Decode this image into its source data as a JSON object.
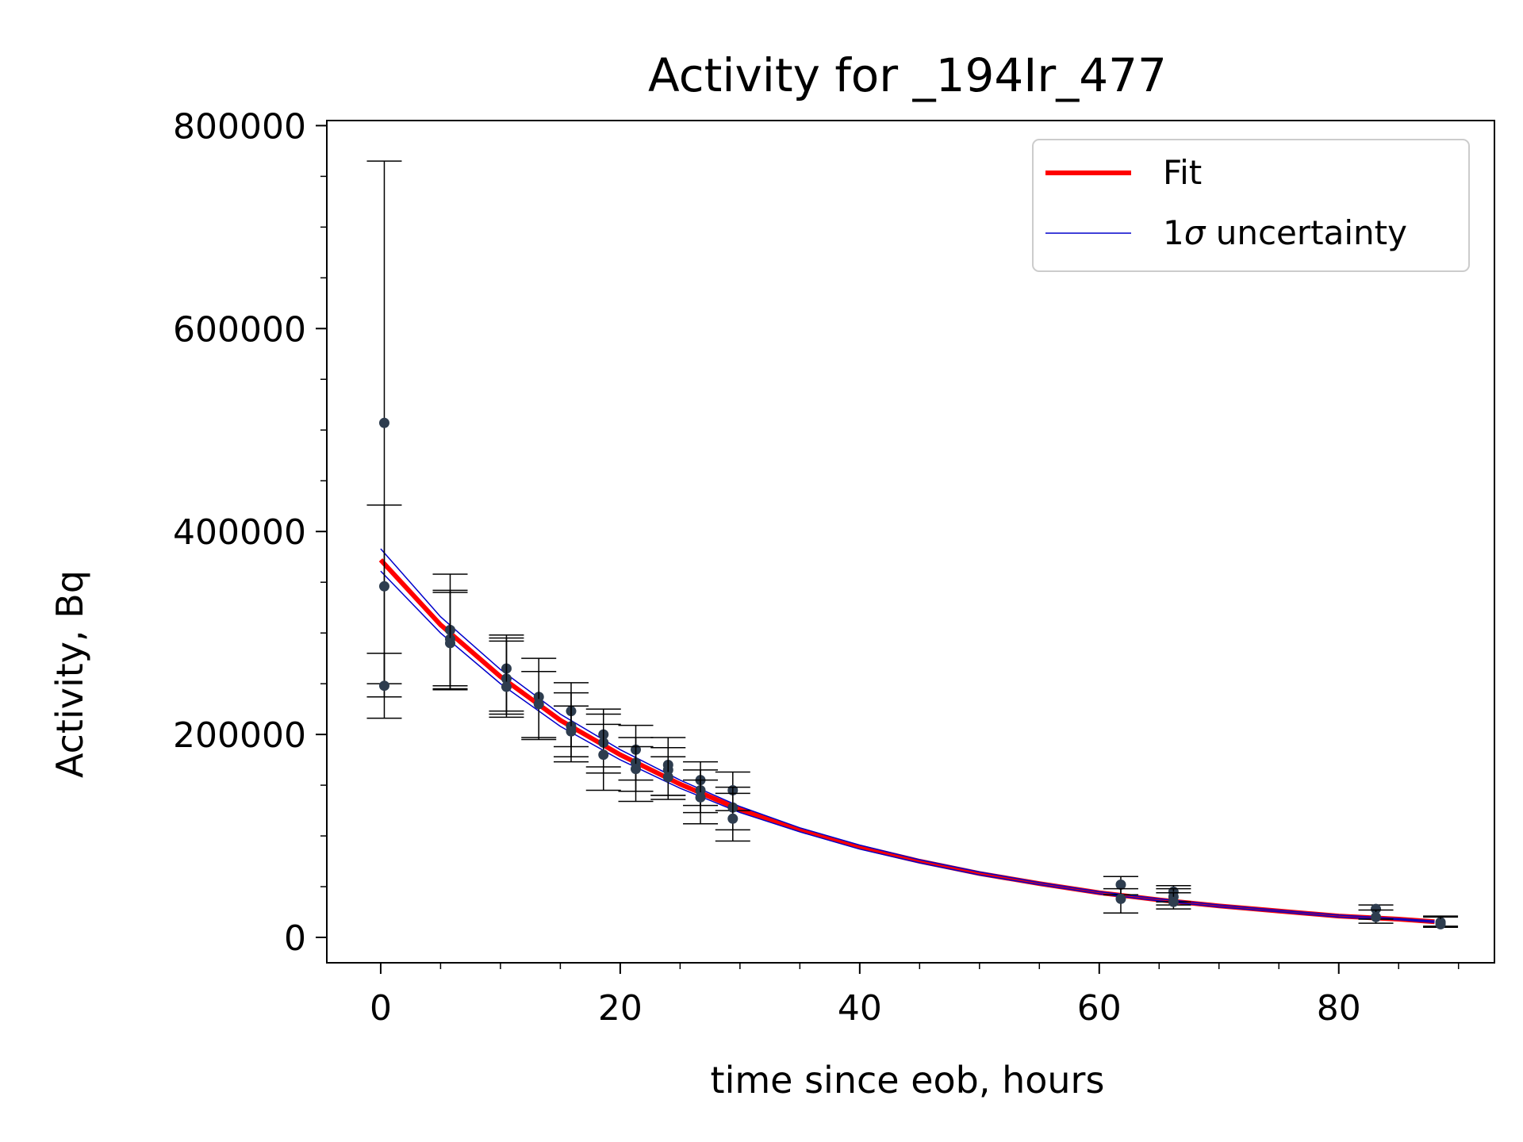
{
  "chart_data": {
    "type": "scatter",
    "title": "Activity for _194Ir_477",
    "xlabel": "time since eob, hours",
    "ylabel": "Activity, Bq",
    "xlim": [
      -4.5,
      93
    ],
    "ylim": [
      -25000,
      805000
    ],
    "x_ticks": [
      0,
      20,
      40,
      60,
      80
    ],
    "y_ticks": [
      0,
      200000,
      400000,
      600000,
      800000
    ],
    "x_minor_step": 5,
    "y_minor_step": 50000,
    "grid": false,
    "legend": {
      "position": "top-right",
      "entries": [
        {
          "label": "Fit",
          "color": "#ff0000"
        },
        {
          "label_prefix": "1",
          "label_symbol": "σ",
          "label_suffix": " uncertainty",
          "color": "#0000cc"
        }
      ]
    },
    "fit": {
      "name": "Fit",
      "color": "#ff0000",
      "x": [
        0,
        5,
        10,
        15,
        20,
        25,
        30,
        35,
        40,
        45,
        50,
        55,
        60,
        65,
        70,
        75,
        80,
        85,
        88
      ],
      "y": [
        372000,
        308000,
        257000,
        214000,
        180000,
        151000,
        126000,
        106000,
        89000,
        75000,
        63000,
        53000,
        44000,
        37000,
        31000,
        26000,
        21000,
        18000,
        15500
      ]
    },
    "uncertainty_upper": {
      "name": "1σ uncertainty",
      "color": "#0000cc",
      "x": [
        0,
        5,
        10,
        15,
        20,
        25,
        30,
        35,
        40,
        45,
        50,
        55,
        60,
        65,
        70,
        75,
        80,
        85,
        88
      ],
      "y": [
        383000,
        316000,
        264000,
        220000,
        185000,
        155000,
        129000,
        108000,
        91000,
        76500,
        64500,
        54000,
        45000,
        38000,
        32000,
        26800,
        22000,
        18600,
        16200
      ]
    },
    "uncertainty_lower": {
      "name": "1σ uncertainty",
      "color": "#0000cc",
      "x": [
        0,
        5,
        10,
        15,
        20,
        25,
        30,
        35,
        40,
        45,
        50,
        55,
        60,
        65,
        70,
        75,
        80,
        85,
        88
      ],
      "y": [
        361000,
        300000,
        250000,
        208000,
        175000,
        147000,
        123000,
        104000,
        87000,
        73500,
        61500,
        52000,
        43000,
        36000,
        30000,
        25200,
        20000,
        17400,
        14800
      ]
    },
    "points": [
      {
        "x": 0.3,
        "y": 507000,
        "err_low": 270000,
        "err_high": 258000
      },
      {
        "x": 0.3,
        "y": 346000,
        "err_low": 96000,
        "err_high": 80000
      },
      {
        "x": 0.3,
        "y": 248000,
        "err_low": 32000,
        "err_high": 32000
      },
      {
        "x": 5.8,
        "y": 303000,
        "err_low": 55000,
        "err_high": 55000
      },
      {
        "x": 5.8,
        "y": 294000,
        "err_low": 50000,
        "err_high": 48000
      },
      {
        "x": 5.8,
        "y": 290000,
        "err_low": 45000,
        "err_high": 50000
      },
      {
        "x": 10.5,
        "y": 265000,
        "err_low": 42000,
        "err_high": 33000
      },
      {
        "x": 10.5,
        "y": 255000,
        "err_low": 35000,
        "err_high": 40000
      },
      {
        "x": 10.5,
        "y": 247000,
        "err_low": 30000,
        "err_high": 45000
      },
      {
        "x": 13.2,
        "y": 237000,
        "err_low": 40000,
        "err_high": 38000
      },
      {
        "x": 13.2,
        "y": 230000,
        "err_low": 35000,
        "err_high": 32000
      },
      {
        "x": 15.9,
        "y": 223000,
        "err_low": 35000,
        "err_high": 28000
      },
      {
        "x": 15.9,
        "y": 208000,
        "err_low": 30000,
        "err_high": 33000
      },
      {
        "x": 15.9,
        "y": 203000,
        "err_low": 30000,
        "err_high": 25000
      },
      {
        "x": 18.6,
        "y": 200000,
        "err_low": 32000,
        "err_high": 25000
      },
      {
        "x": 18.6,
        "y": 192000,
        "err_low": 30000,
        "err_high": 28000
      },
      {
        "x": 18.6,
        "y": 180000,
        "err_low": 35000,
        "err_high": 30000
      },
      {
        "x": 21.3,
        "y": 185000,
        "err_low": 30000,
        "err_high": 24000
      },
      {
        "x": 21.3,
        "y": 172000,
        "err_low": 28000,
        "err_high": 25000
      },
      {
        "x": 21.3,
        "y": 166000,
        "err_low": 32000,
        "err_high": 22000
      },
      {
        "x": 24.0,
        "y": 170000,
        "err_low": 30000,
        "err_high": 27000
      },
      {
        "x": 24.0,
        "y": 165000,
        "err_low": 25000,
        "err_high": 22000
      },
      {
        "x": 24.0,
        "y": 158000,
        "err_low": 22000,
        "err_high": 20000
      },
      {
        "x": 26.7,
        "y": 155000,
        "err_low": 25000,
        "err_high": 18000
      },
      {
        "x": 26.7,
        "y": 145000,
        "err_low": 22000,
        "err_high": 20000
      },
      {
        "x": 26.7,
        "y": 138000,
        "err_low": 26000,
        "err_high": 17000
      },
      {
        "x": 29.4,
        "y": 145000,
        "err_low": 20000,
        "err_high": 18000
      },
      {
        "x": 29.4,
        "y": 128000,
        "err_low": 22000,
        "err_high": 20000
      },
      {
        "x": 29.4,
        "y": 117000,
        "err_low": 22000,
        "err_high": 25000
      },
      {
        "x": 61.8,
        "y": 52000,
        "err_low": 10000,
        "err_high": 8000
      },
      {
        "x": 61.8,
        "y": 38000,
        "err_low": 14000,
        "err_high": 10000
      },
      {
        "x": 66.2,
        "y": 45000,
        "err_low": 10000,
        "err_high": 6000
      },
      {
        "x": 66.2,
        "y": 40000,
        "err_low": 8000,
        "err_high": 8000
      },
      {
        "x": 66.2,
        "y": 35000,
        "err_low": 7000,
        "err_high": 9000
      },
      {
        "x": 83.1,
        "y": 28000,
        "err_low": 10000,
        "err_high": 4000
      },
      {
        "x": 83.1,
        "y": 20000,
        "err_low": 6000,
        "err_high": 7000
      },
      {
        "x": 88.5,
        "y": 15000,
        "err_low": 4000,
        "err_high": 6000
      },
      {
        "x": 88.5,
        "y": 13000,
        "err_low": 3000,
        "err_high": 7000
      }
    ],
    "marker_color": "#2e3d4f",
    "errorbar_color": "#000000"
  }
}
